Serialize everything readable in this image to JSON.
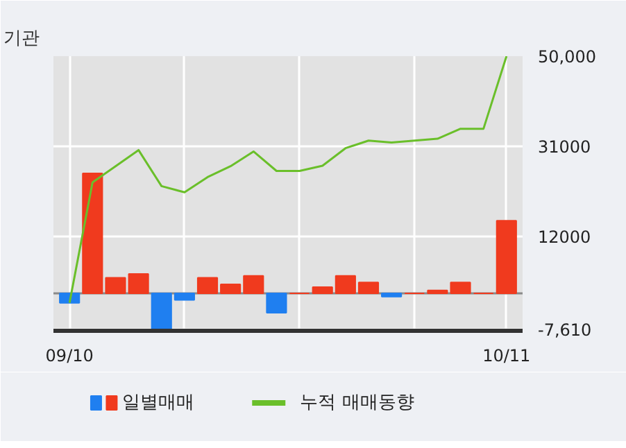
{
  "chart_data": {
    "type": "bar",
    "title": "기관",
    "categories": [
      "09/10",
      null,
      null,
      null,
      null,
      null,
      null,
      null,
      null,
      null,
      null,
      null,
      null,
      null,
      null,
      null,
      null,
      null,
      null,
      "10/11"
    ],
    "series": [
      {
        "name": "일별매매",
        "colors": [
          "#1f7ff0",
          "#f03a1e",
          "#f03a1e",
          "#f03a1e",
          "#1f7ff0",
          "#1f7ff0",
          "#f03a1e",
          "#f03a1e",
          "#f03a1e",
          "#1f7ff0",
          "#f03a1e",
          "#f03a1e",
          "#f03a1e",
          "#f03a1e",
          "#1f7ff0",
          "#f03a1e",
          "#f03a1e",
          "#f03a1e",
          "#f03a1e",
          "#f03a1e"
        ],
        "values": [
          -2000,
          25300,
          3300,
          4100,
          -7500,
          -1400,
          3300,
          1900,
          3700,
          -4100,
          0,
          1300,
          3700,
          2300,
          -700,
          0,
          600,
          2300,
          0,
          15300
        ]
      },
      {
        "name": "누적 매매동향",
        "type": "line",
        "color": "#6abf2a",
        "values": [
          -2000,
          23400,
          26800,
          30200,
          22600,
          21300,
          24500,
          26800,
          29900,
          25800,
          25800,
          26900,
          30600,
          32200,
          31800,
          32200,
          32600,
          34700,
          34700,
          50000
        ]
      }
    ],
    "ylim": [
      -7900,
      50000
    ],
    "yticks": [
      {
        "value": 50000,
        "label": "50,000"
      },
      31000,
      12000,
      {
        "value": -7610,
        "label": "-7,610"
      }
    ],
    "grid": true,
    "legend": "bottom"
  }
}
